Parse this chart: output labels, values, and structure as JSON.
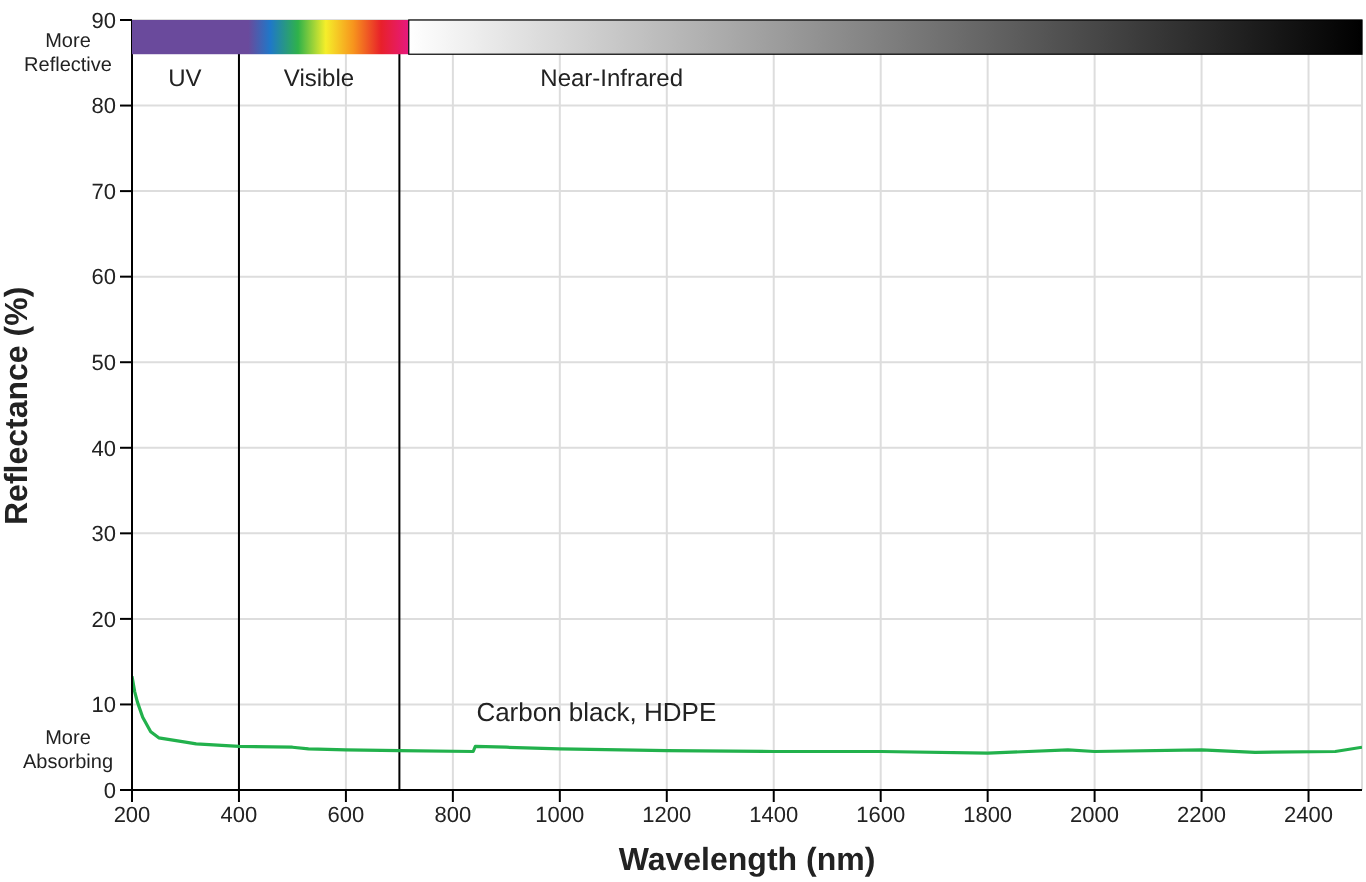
{
  "chart_data": {
    "type": "line",
    "xlabel": "Wavelength (nm)",
    "ylabel": "Reflectance (%)",
    "x": [
      200,
      205,
      210,
      220,
      235,
      250,
      300,
      320,
      400,
      500,
      530,
      600,
      700,
      838,
      842,
      900,
      1000,
      1200,
      1400,
      1600,
      1800,
      1950,
      2000,
      2200,
      2300,
      2450,
      2500
    ],
    "series": [
      {
        "name": "Carbon black, HDPE",
        "color": "#22b14c",
        "values": [
          13.3,
          11.5,
          10.3,
          8.5,
          6.8,
          6.1,
          5.6,
          5.4,
          5.1,
          5.0,
          4.8,
          4.7,
          4.6,
          4.5,
          5.1,
          5.0,
          4.8,
          4.6,
          4.5,
          4.5,
          4.3,
          4.7,
          4.5,
          4.7,
          4.4,
          4.5,
          5.0
        ]
      }
    ],
    "xlim": [
      200,
      2500
    ],
    "xticks": [
      200,
      400,
      600,
      800,
      1000,
      1200,
      1400,
      1600,
      1800,
      2000,
      2200,
      2400
    ],
    "ylim": [
      0,
      90
    ],
    "yticks": [
      0,
      10,
      20,
      30,
      40,
      50,
      60,
      70,
      80,
      90
    ],
    "grid": true,
    "marker": "none",
    "line_style": "solid",
    "ref_lines": [
      {
        "axis": "x",
        "value": 400,
        "label": null,
        "color": "#000000"
      },
      {
        "axis": "x",
        "value": 700,
        "label": null,
        "color": "#000000"
      }
    ],
    "annotations": [
      "More Reflective",
      "More Absorbing",
      "UV",
      "Visible",
      "Near-Infrared"
    ]
  }
}
